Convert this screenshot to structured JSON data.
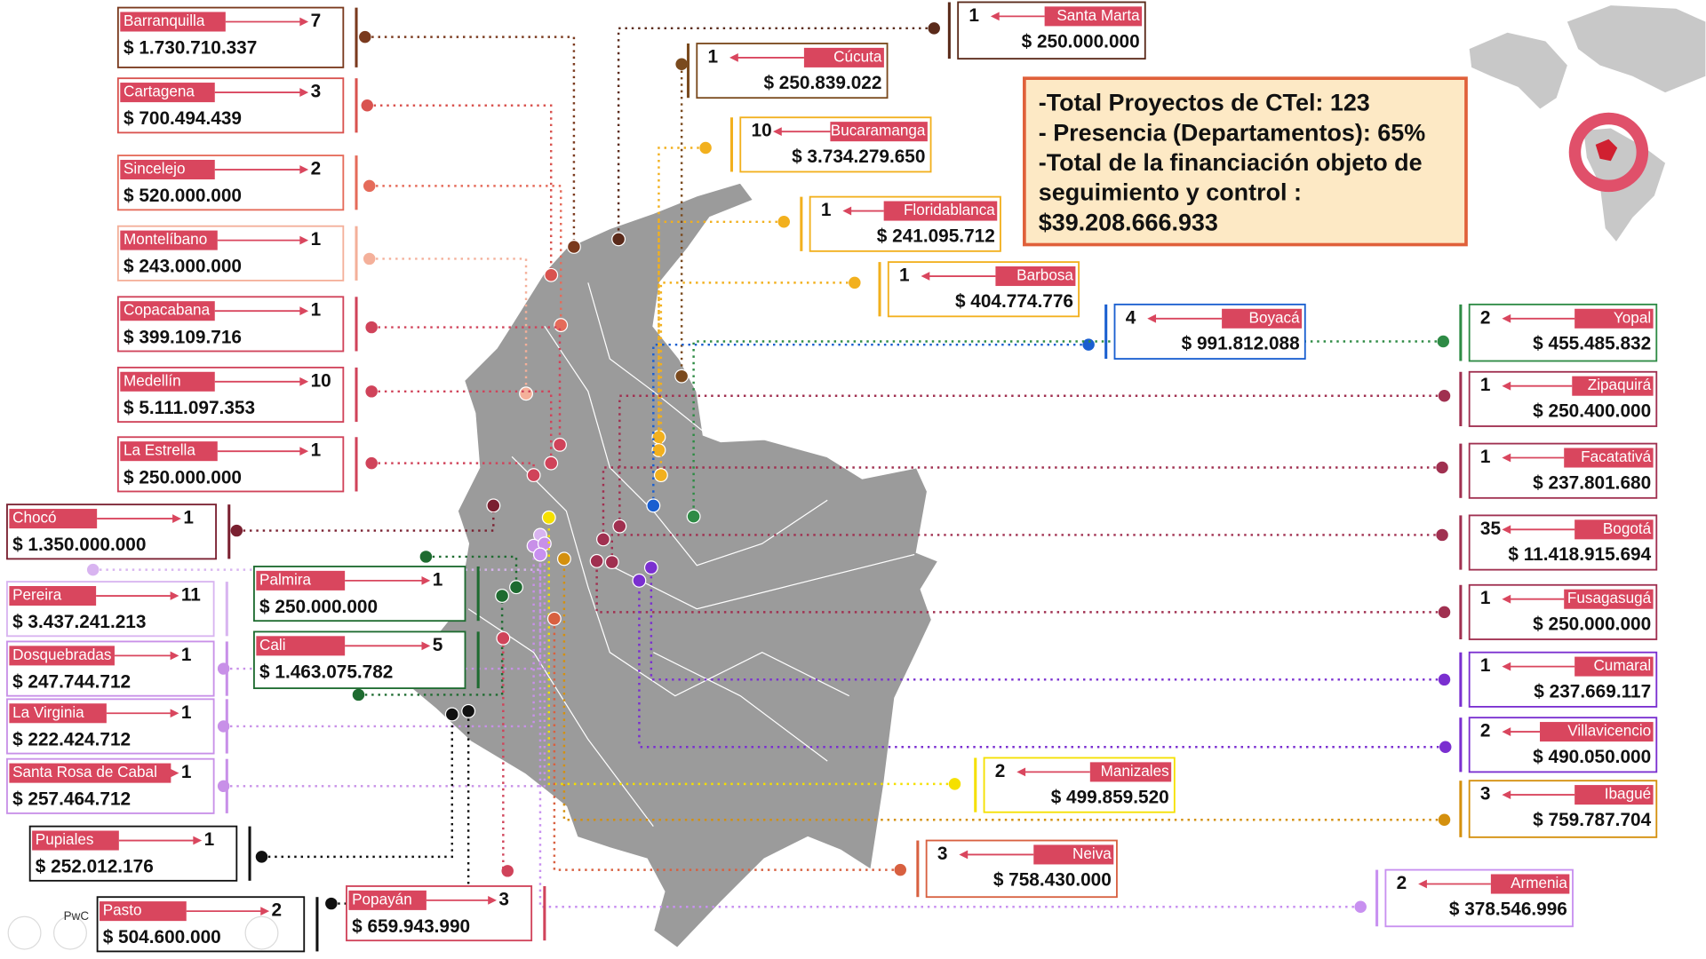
{
  "summary": {
    "lines": [
      "-Total Proyectos de CTel: 123",
      "- Presencia (Departamentos): 65%",
      "-Total de la financiación objeto de",
      "seguimiento y control :",
      "$39.208.666.933"
    ]
  },
  "cities": [
    {
      "name": "Barranquilla",
      "count": 7,
      "amount": "$ 1.730.710.337"
    },
    {
      "name": "Cartagena",
      "count": 3,
      "amount": "$ 700.494.439"
    },
    {
      "name": "Sincelejo",
      "count": 2,
      "amount": "$ 520.000.000"
    },
    {
      "name": "Montelíbano",
      "count": 1,
      "amount": "$ 243.000.000"
    },
    {
      "name": "Copacabana",
      "count": 1,
      "amount": "$ 399.109.716"
    },
    {
      "name": "Medellín",
      "count": 10,
      "amount": "$ 5.111.097.353"
    },
    {
      "name": "La Estrella",
      "count": 1,
      "amount": "$ 250.000.000"
    },
    {
      "name": "Chocó",
      "count": 1,
      "amount": "$ 1.350.000.000"
    },
    {
      "name": "Pereira",
      "count": 11,
      "amount": "$ 3.437.241.213"
    },
    {
      "name": "Dosquebradas",
      "count": 1,
      "amount": "$ 247.744.712"
    },
    {
      "name": "La Virginia",
      "count": 1,
      "amount": "$ 222.424.712"
    },
    {
      "name": "Santa Rosa de Cabal",
      "count": 1,
      "amount": "$ 257.464.712"
    },
    {
      "name": "Palmira",
      "count": 1,
      "amount": "$ 250.000.000"
    },
    {
      "name": "Cali",
      "count": 5,
      "amount": "$ 1.463.075.782"
    },
    {
      "name": "Pupiales",
      "count": 1,
      "amount": "$ 252.012.176"
    },
    {
      "name": "Pasto",
      "count": 2,
      "amount": "$ 504.600.000"
    },
    {
      "name": "Popayán",
      "count": 3,
      "amount": "$ 659.943.990"
    },
    {
      "name": "Santa Marta",
      "count": 1,
      "amount": "$ 250.000.000"
    },
    {
      "name": "Cúcuta",
      "count": 1,
      "amount": "$ 250.839.022"
    },
    {
      "name": "Bucaramanga",
      "count": 10,
      "amount": "$ 3.734.279.650"
    },
    {
      "name": "Floridablanca",
      "count": 1,
      "amount": "$ 241.095.712"
    },
    {
      "name": "Barbosa",
      "count": 1,
      "amount": "$ 404.774.776"
    },
    {
      "name": "Boyacá",
      "count": 4,
      "amount": "$ 991.812.088"
    },
    {
      "name": "Yopal",
      "count": 2,
      "amount": "$ 455.485.832"
    },
    {
      "name": "Zipaquirá",
      "count": 1,
      "amount": "$ 250.400.000"
    },
    {
      "name": "Facatativá",
      "count": 1,
      "amount": "$ 237.801.680"
    },
    {
      "name": "Bogotá",
      "count": 35,
      "amount": "$ 11.418.915.694"
    },
    {
      "name": "Fusagasugá",
      "count": 1,
      "amount": "$ 250.000.000"
    },
    {
      "name": "Cumaral",
      "count": 1,
      "amount": "$ 237.669.117"
    },
    {
      "name": "Villavicencio",
      "count": 2,
      "amount": "$ 490.050.000"
    },
    {
      "name": "Ibagué",
      "count": 3,
      "amount": "$ 759.787.704"
    },
    {
      "name": "Manizales",
      "count": 2,
      "amount": "$ 499.859.520"
    },
    {
      "name": "Neiva",
      "count": 3,
      "amount": "$ 758.430.000"
    },
    {
      "name": "Armenia",
      "count": 2,
      "amount": "$ 378.546.996"
    }
  ],
  "footer": "PwC"
}
